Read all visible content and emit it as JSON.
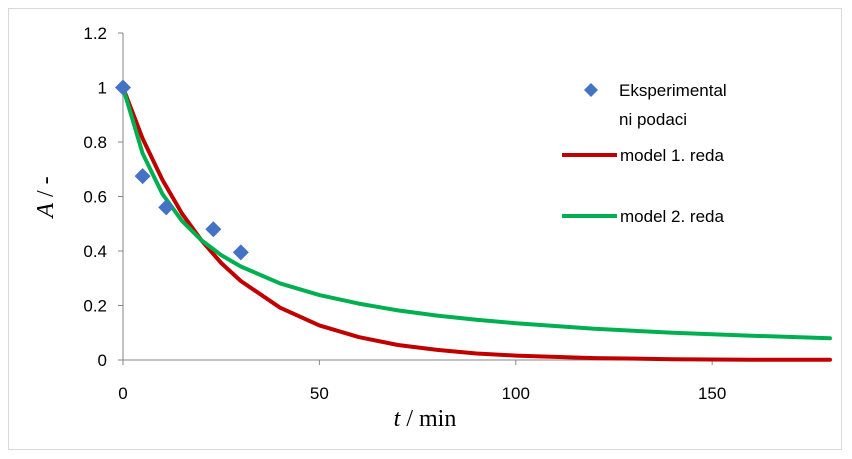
{
  "chart_data": {
    "type": "scatter",
    "xlabel_var": "t",
    "xlabel_unit": " / min",
    "ylabel_var": "A",
    "ylabel_unit": " / -",
    "xlim": [
      0,
      180
    ],
    "ylim": [
      0,
      1.2
    ],
    "xticks": [
      0,
      50,
      100,
      150
    ],
    "yticks": [
      0,
      0.2,
      0.4,
      0.6,
      0.8,
      1,
      1.2
    ],
    "grid": false,
    "legend_position": "right",
    "series": [
      {
        "name": "Eksperimentalni podaci",
        "legend_lines": [
          "Eksperimental",
          "ni podaci"
        ],
        "kind": "markers",
        "marker": "diamond",
        "color": "#4472c4",
        "x": [
          0,
          5,
          11,
          23,
          30
        ],
        "y": [
          1.0,
          0.675,
          0.56,
          0.48,
          0.395
        ]
      },
      {
        "name": "model 1. reda",
        "kind": "line",
        "color": "#c00000",
        "x": [
          0,
          5,
          10,
          15,
          20,
          25,
          30,
          40,
          50,
          60,
          70,
          80,
          90,
          100,
          120,
          140,
          160,
          180
        ],
        "y": [
          1.0,
          0.813,
          0.662,
          0.538,
          0.438,
          0.356,
          0.29,
          0.192,
          0.127,
          0.084,
          0.055,
          0.037,
          0.024,
          0.016,
          0.007,
          0.003,
          0.001,
          0.001
        ]
      },
      {
        "name": "model 2. reda",
        "kind": "line",
        "color": "#00b050",
        "x": [
          0,
          5,
          10,
          15,
          20,
          25,
          30,
          40,
          50,
          60,
          70,
          80,
          90,
          100,
          120,
          140,
          160,
          180
        ],
        "y": [
          1.0,
          0.758,
          0.61,
          0.511,
          0.439,
          0.385,
          0.343,
          0.281,
          0.238,
          0.207,
          0.182,
          0.163,
          0.148,
          0.135,
          0.115,
          0.1,
          0.089,
          0.08
        ]
      }
    ]
  }
}
